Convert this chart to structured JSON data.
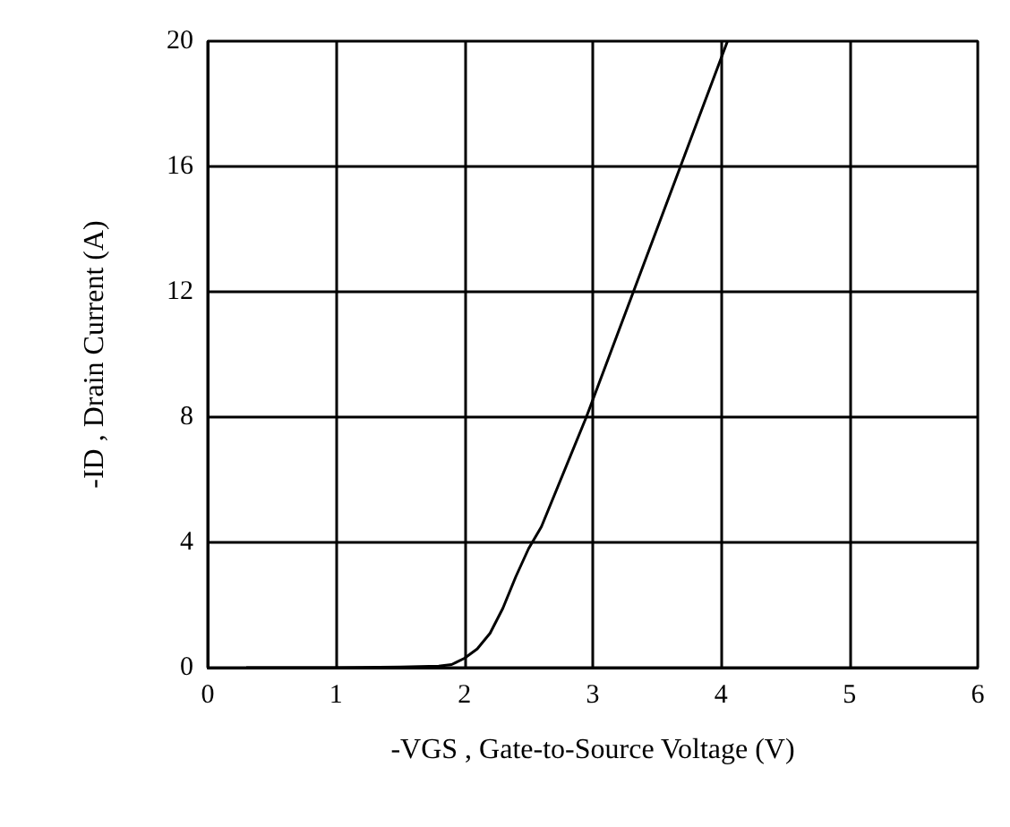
{
  "chart_data": {
    "type": "line",
    "xlabel": "-VGS , Gate-to-Source Voltage (V)",
    "ylabel": "-ID , Drain Current (A)",
    "series": [
      {
        "color": "#000000",
        "x": [
          0.3,
          1.0,
          1.5,
          1.8,
          1.9,
          2.0,
          2.1,
          2.2,
          2.3,
          2.4,
          2.5,
          2.6,
          2.95,
          3.5,
          4.05
        ],
        "values": [
          0,
          0,
          0.02,
          0.05,
          0.1,
          0.3,
          0.6,
          1.1,
          1.9,
          2.9,
          3.8,
          4.5,
          8,
          14,
          20
        ]
      }
    ],
    "xlim": [
      0,
      6
    ],
    "xticks": [
      0,
      1,
      2,
      3,
      4,
      5,
      6
    ],
    "ylim": [
      0,
      20
    ],
    "yticks": [
      0,
      4,
      8,
      12,
      16,
      20
    ],
    "grid": true,
    "marker": "none",
    "line_style": "solid"
  }
}
